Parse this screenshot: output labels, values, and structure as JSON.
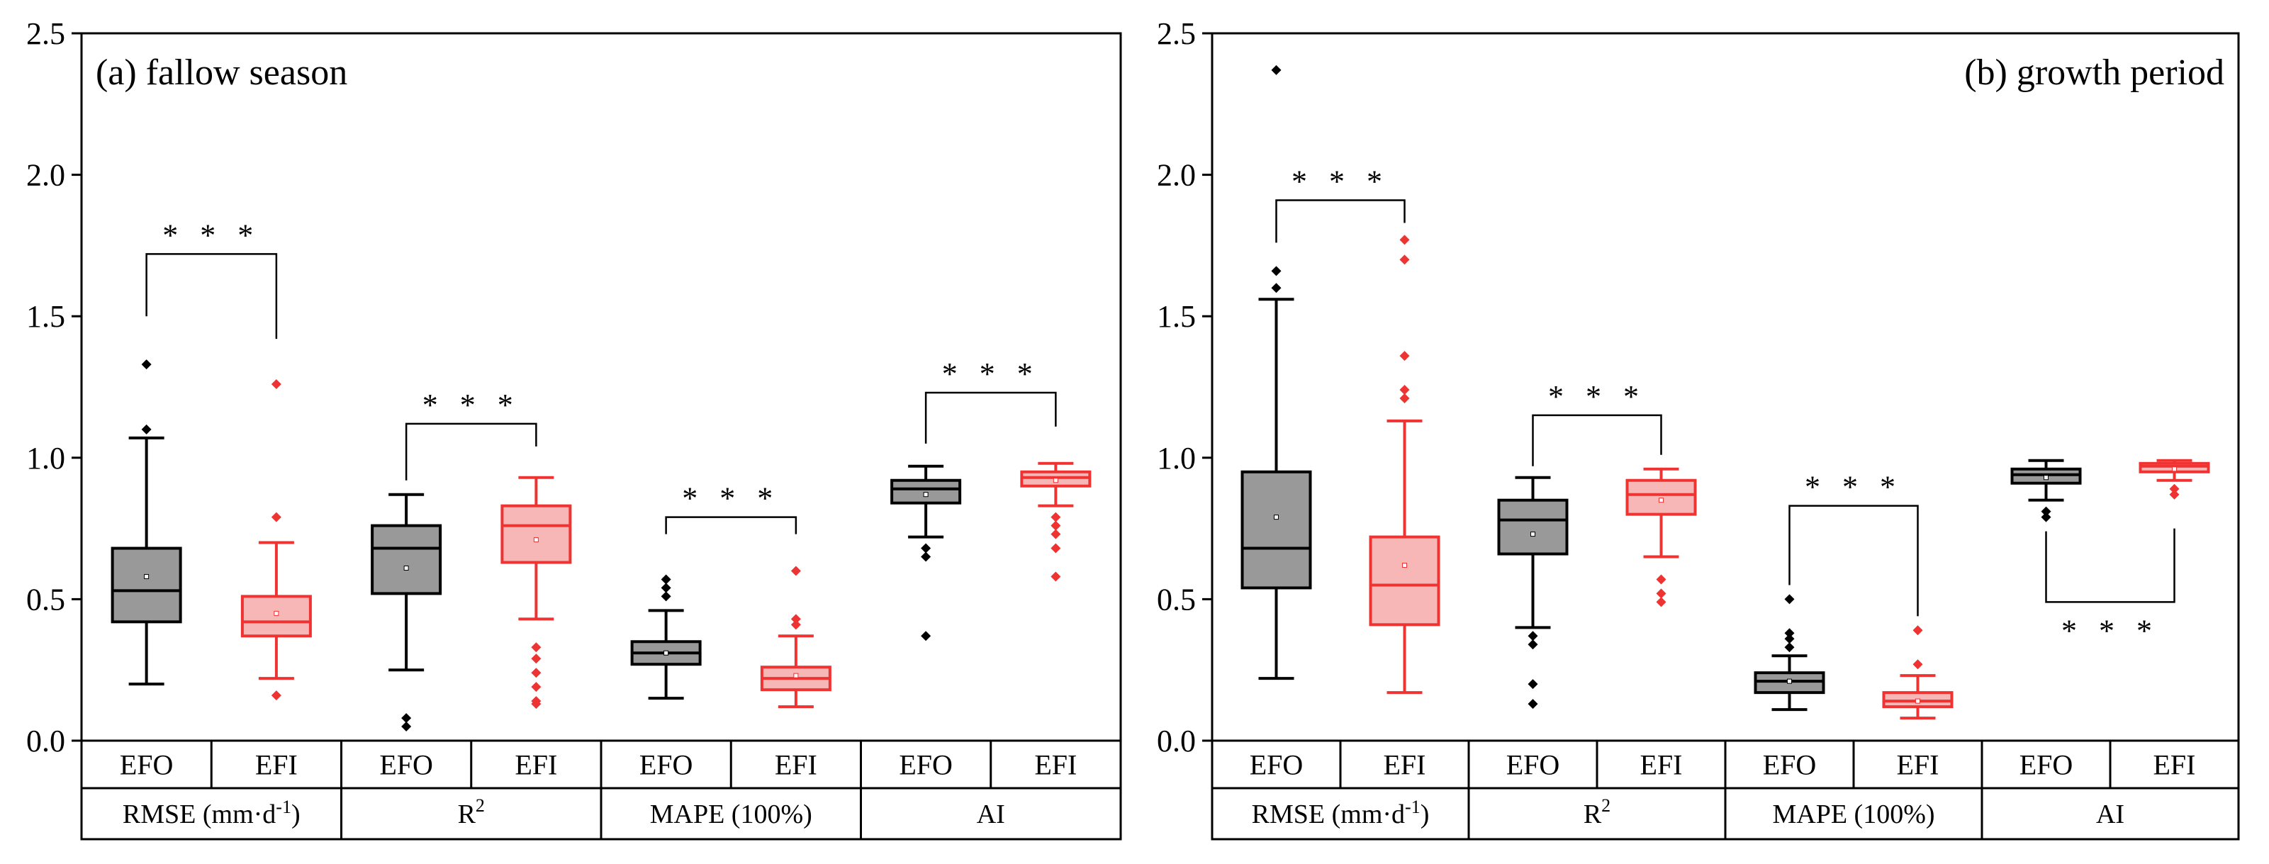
{
  "chart_data": [
    {
      "type": "box",
      "title": "(a) fallow season",
      "title_position": "top-left",
      "ylim": [
        0,
        2.5
      ],
      "yticks": [
        "0.0",
        "0.5",
        "1.0",
        "1.5",
        "2.0",
        "2.5"
      ],
      "group_labels": [
        "EFO",
        "EFI",
        "EFO",
        "EFI",
        "EFO",
        "EFI",
        "EFO",
        "EFI"
      ],
      "metric_labels": [
        "RMSE (mm·d",
        "R",
        "MAPE (100%)",
        "AI"
      ],
      "colors": {
        "EFO": "#000000",
        "EFO_fill": "#999999",
        "EFI": "#ee3333",
        "EFI_fill": "#f7b7b7"
      },
      "boxes": [
        {
          "metric": "RMSE",
          "group": "EFO",
          "whisker_low": 0.2,
          "q1": 0.42,
          "median": 0.53,
          "q3": 0.68,
          "whisker_high": 1.07,
          "mean": 0.58,
          "outliers": [
            1.1,
            1.33
          ]
        },
        {
          "metric": "RMSE",
          "group": "EFI",
          "whisker_low": 0.22,
          "q1": 0.37,
          "median": 0.42,
          "q3": 0.51,
          "whisker_high": 0.7,
          "mean": 0.45,
          "outliers": [
            0.79,
            1.26,
            0.16
          ]
        },
        {
          "metric": "R2",
          "group": "EFO",
          "whisker_low": 0.25,
          "q1": 0.52,
          "median": 0.68,
          "q3": 0.76,
          "whisker_high": 0.87,
          "mean": 0.61,
          "outliers": [
            0.08,
            0.05
          ]
        },
        {
          "metric": "R2",
          "group": "EFI",
          "whisker_low": 0.43,
          "q1": 0.63,
          "median": 0.76,
          "q3": 0.83,
          "whisker_high": 0.93,
          "mean": 0.71,
          "outliers": [
            0.33,
            0.29,
            0.24,
            0.19,
            0.14,
            0.13
          ]
        },
        {
          "metric": "MAPE",
          "group": "EFO",
          "whisker_low": 0.15,
          "q1": 0.27,
          "median": 0.31,
          "q3": 0.35,
          "whisker_high": 0.46,
          "mean": 0.31,
          "outliers": [
            0.51,
            0.54,
            0.57
          ]
        },
        {
          "metric": "MAPE",
          "group": "EFI",
          "whisker_low": 0.12,
          "q1": 0.18,
          "median": 0.22,
          "q3": 0.26,
          "whisker_high": 0.37,
          "mean": 0.23,
          "outliers": [
            0.41,
            0.43,
            0.6
          ]
        },
        {
          "metric": "AI",
          "group": "EFO",
          "whisker_low": 0.72,
          "q1": 0.84,
          "median": 0.89,
          "q3": 0.92,
          "whisker_high": 0.97,
          "mean": 0.87,
          "outliers": [
            0.68,
            0.65,
            0.37
          ]
        },
        {
          "metric": "AI",
          "group": "EFI",
          "whisker_low": 0.83,
          "q1": 0.9,
          "median": 0.93,
          "q3": 0.95,
          "whisker_high": 0.98,
          "mean": 0.92,
          "outliers": [
            0.79,
            0.76,
            0.73,
            0.68,
            0.58
          ]
        }
      ],
      "significance": [
        {
          "label": "* * *",
          "metric": "RMSE",
          "bracket_y": 1.72,
          "left_end": 1.5,
          "right_end": 1.42,
          "direction": "above"
        },
        {
          "label": "* * *",
          "metric": "R2",
          "bracket_y": 1.12,
          "left_end": 0.92,
          "right_end": 1.04,
          "direction": "above"
        },
        {
          "label": "* * *",
          "metric": "MAPE",
          "bracket_y": 0.79,
          "left_end": 0.73,
          "right_end": 0.73,
          "direction": "above"
        },
        {
          "label": "* * *",
          "metric": "AI",
          "bracket_y": 1.23,
          "left_end": 1.05,
          "right_end": 1.11,
          "direction": "above"
        }
      ]
    },
    {
      "type": "box",
      "title": "(b) growth period",
      "title_position": "top-right",
      "ylim": [
        0,
        2.5
      ],
      "yticks": [
        "0.0",
        "0.5",
        "1.0",
        "1.5",
        "2.0",
        "2.5"
      ],
      "group_labels": [
        "EFO",
        "EFI",
        "EFO",
        "EFI",
        "EFO",
        "EFI",
        "EFO",
        "EFI"
      ],
      "metric_labels": [
        "RMSE (mm·d",
        "R",
        "MAPE (100%)",
        "AI"
      ],
      "colors": {
        "EFO": "#000000",
        "EFO_fill": "#999999",
        "EFI": "#ee3333",
        "EFI_fill": "#f7b7b7"
      },
      "boxes": [
        {
          "metric": "RMSE",
          "group": "EFO",
          "whisker_low": 0.22,
          "q1": 0.54,
          "median": 0.68,
          "q3": 0.95,
          "whisker_high": 1.56,
          "mean": 0.79,
          "outliers": [
            1.6,
            1.66,
            2.37
          ]
        },
        {
          "metric": "RMSE",
          "group": "EFI",
          "whisker_low": 0.17,
          "q1": 0.41,
          "median": 0.55,
          "q3": 0.72,
          "whisker_high": 1.13,
          "mean": 0.62,
          "outliers": [
            1.21,
            1.24,
            1.36,
            1.7,
            1.77
          ]
        },
        {
          "metric": "R2",
          "group": "EFO",
          "whisker_low": 0.4,
          "q1": 0.66,
          "median": 0.78,
          "q3": 0.85,
          "whisker_high": 0.93,
          "mean": 0.73,
          "outliers": [
            0.37,
            0.34,
            0.2,
            0.13
          ]
        },
        {
          "metric": "R2",
          "group": "EFI",
          "whisker_low": 0.65,
          "q1": 0.8,
          "median": 0.87,
          "q3": 0.92,
          "whisker_high": 0.96,
          "mean": 0.85,
          "outliers": [
            0.57,
            0.52,
            0.49
          ]
        },
        {
          "metric": "MAPE",
          "group": "EFO",
          "whisker_low": 0.11,
          "q1": 0.17,
          "median": 0.21,
          "q3": 0.24,
          "whisker_high": 0.3,
          "mean": 0.21,
          "outliers": [
            0.33,
            0.36,
            0.38,
            0.5
          ]
        },
        {
          "metric": "MAPE",
          "group": "EFI",
          "whisker_low": 0.08,
          "q1": 0.12,
          "median": 0.14,
          "q3": 0.17,
          "whisker_high": 0.23,
          "mean": 0.14,
          "outliers": [
            0.27,
            0.39
          ]
        },
        {
          "metric": "AI",
          "group": "EFO",
          "whisker_low": 0.85,
          "q1": 0.91,
          "median": 0.94,
          "q3": 0.96,
          "whisker_high": 0.99,
          "mean": 0.93,
          "outliers": [
            0.81,
            0.79
          ]
        },
        {
          "metric": "AI",
          "group": "EFI",
          "whisker_low": 0.92,
          "q1": 0.95,
          "median": 0.97,
          "q3": 0.98,
          "whisker_high": 0.99,
          "mean": 0.96,
          "outliers": [
            0.89,
            0.87
          ]
        }
      ],
      "significance": [
        {
          "label": "* * *",
          "metric": "RMSE",
          "bracket_y": 1.91,
          "left_end": 1.76,
          "right_end": 1.83,
          "direction": "above"
        },
        {
          "label": "* * *",
          "metric": "R2",
          "bracket_y": 1.15,
          "left_end": 0.97,
          "right_end": 1.01,
          "direction": "above"
        },
        {
          "label": "* * *",
          "metric": "MAPE",
          "bracket_y": 0.83,
          "left_end": 0.55,
          "right_end": 0.44,
          "direction": "above"
        },
        {
          "label": "* * *",
          "metric": "AI",
          "bracket_y": 0.49,
          "left_end": 0.74,
          "right_end": 0.75,
          "direction": "below"
        }
      ]
    }
  ]
}
